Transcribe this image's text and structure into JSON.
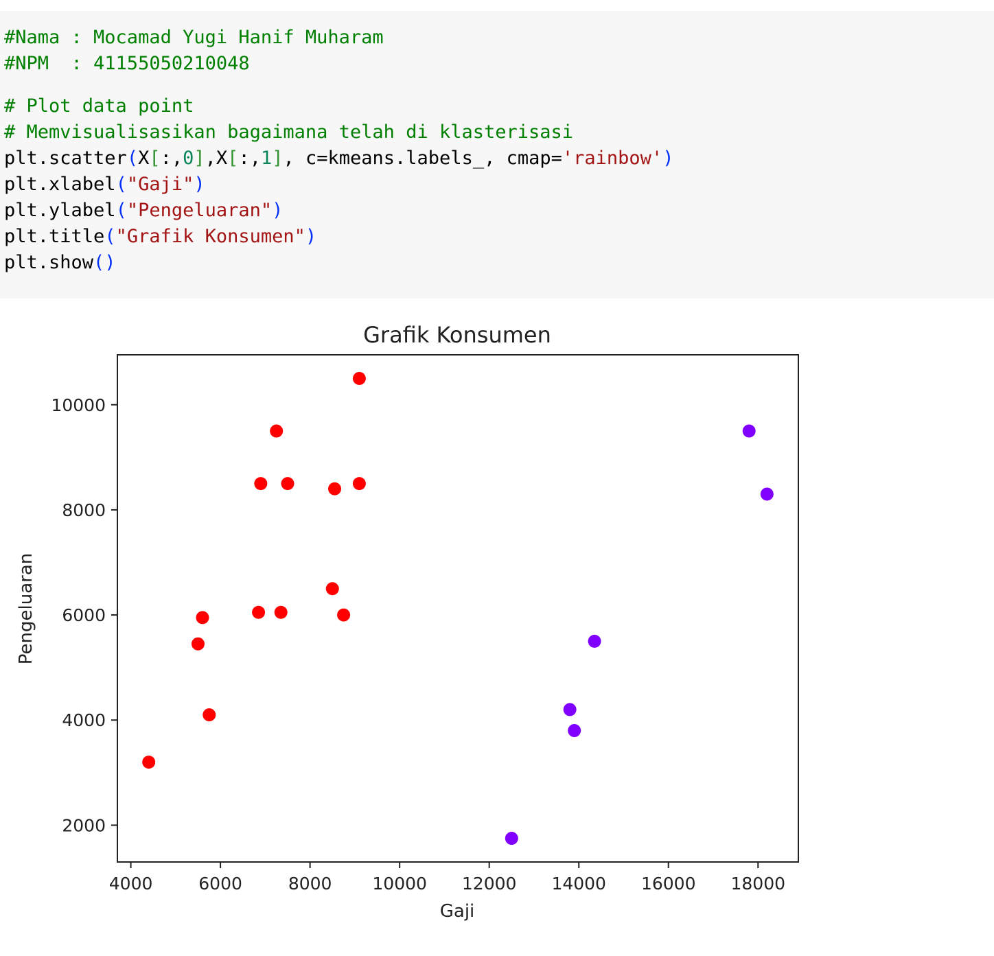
{
  "code_cell": {
    "lines": [
      {
        "segments": [
          {
            "t": "#Nama : Mocamad Yugi Hanif Muharam",
            "k": "comment"
          }
        ]
      },
      {
        "segments": [
          {
            "t": "#NPM  : 41155050210048",
            "k": "comment"
          }
        ]
      },
      {
        "blank": true
      },
      {
        "segments": [
          {
            "t": "# Plot data point",
            "k": "comment"
          }
        ]
      },
      {
        "segments": [
          {
            "t": "# Memvisualisasikan bagaimana telah di klasterisasi",
            "k": "comment"
          }
        ]
      },
      {
        "segments": [
          {
            "t": "plt.scatter",
            "k": "plain"
          },
          {
            "t": "(",
            "k": "paren"
          },
          {
            "t": "X",
            "k": "plain"
          },
          {
            "t": "[",
            "k": "brk"
          },
          {
            "t": ":,",
            "k": "plain"
          },
          {
            "t": "0",
            "k": "num"
          },
          {
            "t": "]",
            "k": "brk"
          },
          {
            "t": ",X",
            "k": "plain"
          },
          {
            "t": "[",
            "k": "brk"
          },
          {
            "t": ":,",
            "k": "plain"
          },
          {
            "t": "1",
            "k": "num"
          },
          {
            "t": "]",
            "k": "brk"
          },
          {
            "t": ", c=kmeans.labels_, cmap=",
            "k": "plain"
          },
          {
            "t": "'rainbow'",
            "k": "str"
          },
          {
            "t": ")",
            "k": "paren"
          }
        ]
      },
      {
        "segments": [
          {
            "t": "plt.xlabel",
            "k": "plain"
          },
          {
            "t": "(",
            "k": "paren"
          },
          {
            "t": "\"Gaji\"",
            "k": "str"
          },
          {
            "t": ")",
            "k": "paren"
          }
        ]
      },
      {
        "segments": [
          {
            "t": "plt.ylabel",
            "k": "plain"
          },
          {
            "t": "(",
            "k": "paren"
          },
          {
            "t": "\"Pengeluaran\"",
            "k": "str"
          },
          {
            "t": ")",
            "k": "paren"
          }
        ]
      },
      {
        "segments": [
          {
            "t": "plt.title",
            "k": "plain"
          },
          {
            "t": "(",
            "k": "paren"
          },
          {
            "t": "\"Grafik Konsumen\"",
            "k": "str"
          },
          {
            "t": ")",
            "k": "paren"
          }
        ]
      },
      {
        "segments": [
          {
            "t": "plt.show",
            "k": "plain"
          },
          {
            "t": "()",
            "k": "paren"
          }
        ]
      }
    ]
  },
  "colors": {
    "cell_background": "#f7f7f7",
    "comment": "#008000",
    "string": "#a31515",
    "paren": "#0431fa",
    "number": "#098658",
    "bracket": "#319331",
    "cluster_red": "#ff0000",
    "cluster_purple": "#8000ff"
  },
  "chart_data": {
    "type": "scatter",
    "title": "Grafik Konsumen",
    "xlabel": "Gaji",
    "ylabel": "Pengeluaran",
    "xlim": [
      3700,
      18900
    ],
    "ylim": [
      1300,
      10950
    ],
    "xticks": [
      4000,
      6000,
      8000,
      10000,
      12000,
      14000,
      16000,
      18000
    ],
    "yticks": [
      2000,
      4000,
      6000,
      8000,
      10000
    ],
    "grid": false,
    "series": [
      {
        "color": "#ff0000",
        "points": [
          [
            4400,
            3200
          ],
          [
            5500,
            5450
          ],
          [
            5600,
            5950
          ],
          [
            5750,
            4100
          ],
          [
            6850,
            6050
          ],
          [
            6900,
            8500
          ],
          [
            7250,
            9500
          ],
          [
            7350,
            6050
          ],
          [
            7500,
            8500
          ],
          [
            8500,
            6500
          ],
          [
            8550,
            8400
          ],
          [
            8750,
            6000
          ],
          [
            9100,
            10500
          ],
          [
            9100,
            8500
          ]
        ]
      },
      {
        "color": "#8000ff",
        "points": [
          [
            12500,
            1750
          ],
          [
            13800,
            4200
          ],
          [
            13900,
            3800
          ],
          [
            14350,
            5500
          ],
          [
            17800,
            9500
          ],
          [
            18200,
            8300
          ]
        ]
      }
    ]
  }
}
